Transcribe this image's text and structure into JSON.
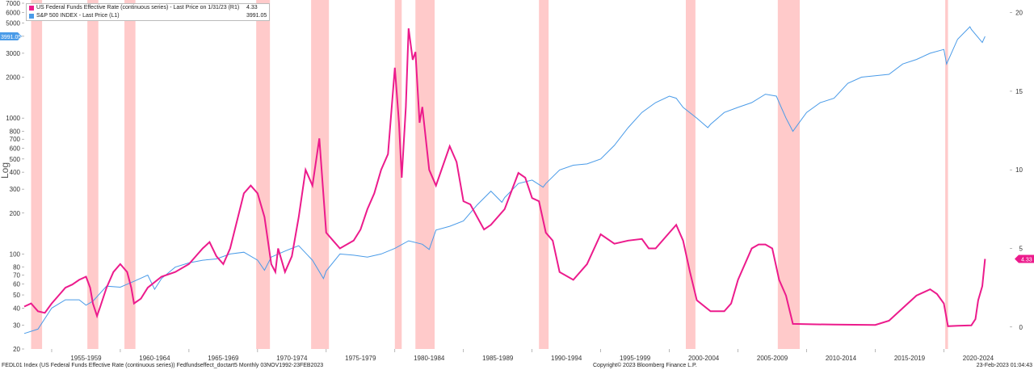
{
  "legend": {
    "fed": {
      "label": "US Federal Funds Effective Rate (continuous series) - Last Price on 1/31/23 (R1)",
      "value": "4.33",
      "color": "#ec1b8c"
    },
    "spx": {
      "label": "S&P 500 INDEX - Last Price (L1)",
      "value": "3991.05",
      "color": "#4a9be8"
    }
  },
  "left_axis_title": "Log",
  "last_labels": {
    "spx": "3991.05",
    "fed": "4.33"
  },
  "footer": {
    "left": "FEDL01 Index (US Federal Funds Effective Rate (continuous series)) Fedfundseffect_doctart5  Monthly 03NOV1992-23FEB2023",
    "center": "Copyright© 2023 Bloomberg Finance L.P.",
    "right": "23-Feb-2023 01:04:43"
  },
  "chart_data": {
    "type": "line",
    "x_range": [
      1953.0,
      2024.8
    ],
    "xticks": [
      "1955-1959",
      "1960-1964",
      "1965-1969",
      "1970-1974",
      "1975-1979",
      "1980-1984",
      "1985-1989",
      "1990-1994",
      "1995-1999",
      "2000-2004",
      "2005-2009",
      "2010-2014",
      "2015-2019",
      "2020-2024"
    ],
    "left_axis": {
      "scale": "log",
      "ticks": [
        7000,
        6000,
        5000,
        4000,
        3000,
        2000,
        1000,
        800,
        700,
        600,
        500,
        400,
        300,
        200,
        100,
        80,
        70,
        60,
        50,
        40,
        30,
        20
      ],
      "range": [
        20,
        7000
      ]
    },
    "right_axis": {
      "scale": "linear",
      "ticks": [
        0,
        5,
        10,
        15,
        20
      ],
      "range": [
        -1.4,
        20.6
      ]
    },
    "recession_bands": [
      [
        1953.5,
        1954.3
      ],
      [
        1957.6,
        1958.4
      ],
      [
        1960.3,
        1961.1
      ],
      [
        1969.9,
        1970.9
      ],
      [
        1973.9,
        1975.2
      ],
      [
        1980.0,
        1980.5
      ],
      [
        1981.5,
        1982.9
      ],
      [
        1990.5,
        1991.2
      ],
      [
        2001.2,
        2001.9
      ],
      [
        2007.9,
        2009.5
      ],
      [
        2020.1,
        2020.3
      ]
    ],
    "series": [
      {
        "name": "US Federal Funds Effective Rate (continuous series)",
        "axis": "right",
        "x": [
          1953.0,
          1953.5,
          1954.0,
          1954.5,
          1955.0,
          1955.5,
          1956.0,
          1956.5,
          1957.0,
          1957.5,
          1957.8,
          1958.0,
          1958.3,
          1958.5,
          1959.0,
          1959.5,
          1960.0,
          1960.5,
          1960.8,
          1961.0,
          1961.5,
          1962.0,
          1963.0,
          1964.0,
          1965.0,
          1966.0,
          1966.5,
          1967.0,
          1967.5,
          1968.0,
          1969.0,
          1969.5,
          1970.0,
          1970.5,
          1971.0,
          1971.3,
          1971.5,
          1972.0,
          1972.5,
          1973.0,
          1973.5,
          1974.0,
          1974.5,
          1975.0,
          1975.5,
          1976.0,
          1977.0,
          1977.5,
          1978.0,
          1978.5,
          1979.0,
          1979.5,
          1980.0,
          1980.3,
          1980.5,
          1980.8,
          1981.0,
          1981.3,
          1981.5,
          1981.8,
          1982.0,
          1982.5,
          1983.0,
          1984.0,
          1984.5,
          1985.0,
          1985.5,
          1986.0,
          1986.5,
          1987.0,
          1988.0,
          1989.0,
          1989.5,
          1990.0,
          1990.5,
          1991.0,
          1991.5,
          1992.0,
          1993.0,
          1994.0,
          1995.0,
          1996.0,
          1997.0,
          1998.0,
          1998.5,
          1999.0,
          2000.0,
          2000.5,
          2001.0,
          2001.5,
          2002.0,
          2003.0,
          2004.0,
          2004.5,
          2005.0,
          2006.0,
          2006.5,
          2007.0,
          2007.5,
          2008.0,
          2008.5,
          2009.0,
          2010.0,
          2012.0,
          2015.0,
          2016.0,
          2017.0,
          2018.0,
          2019.0,
          2019.5,
          2020.0,
          2020.3,
          2021.0,
          2022.0,
          2022.3,
          2022.5,
          2022.8,
          2023.0
        ],
        "values": [
          1.3,
          1.5,
          1.0,
          0.9,
          1.5,
          2.0,
          2.5,
          2.7,
          3.0,
          3.2,
          2.5,
          1.5,
          0.7,
          1.2,
          2.5,
          3.5,
          4.0,
          3.5,
          2.5,
          1.5,
          1.8,
          2.5,
          3.2,
          3.5,
          4.0,
          5.0,
          5.4,
          4.5,
          4.0,
          5.0,
          8.5,
          9.0,
          8.5,
          7.0,
          4.0,
          3.5,
          5.0,
          3.5,
          4.5,
          7.0,
          10.0,
          9.0,
          12.0,
          6.0,
          5.5,
          5.0,
          5.5,
          6.2,
          7.5,
          8.5,
          10.0,
          11.0,
          16.5,
          13.0,
          9.5,
          14.0,
          19.0,
          17.0,
          17.5,
          13.0,
          14.0,
          10.0,
          9.0,
          11.5,
          10.5,
          8.0,
          7.8,
          7.0,
          6.2,
          6.5,
          7.5,
          9.8,
          9.5,
          8.2,
          8.0,
          6.0,
          5.5,
          3.5,
          3.0,
          4.0,
          5.9,
          5.3,
          5.5,
          5.6,
          5.0,
          5.0,
          6.0,
          6.5,
          5.5,
          3.5,
          1.7,
          1.0,
          1.0,
          1.5,
          3.0,
          5.0,
          5.25,
          5.25,
          5.0,
          3.0,
          2.0,
          0.2,
          0.18,
          0.15,
          0.13,
          0.4,
          1.2,
          2.0,
          2.4,
          2.1,
          1.5,
          0.05,
          0.08,
          0.1,
          0.5,
          1.7,
          2.6,
          4.33
        ]
      },
      {
        "name": "S&P 500 INDEX",
        "axis": "left",
        "x": [
          1953.0,
          1954.0,
          1955.0,
          1956.0,
          1957.0,
          1957.5,
          1958.0,
          1959.0,
          1960.0,
          1961.0,
          1962.0,
          1962.5,
          1963.0,
          1964.0,
          1965.0,
          1966.0,
          1967.0,
          1968.0,
          1969.0,
          1970.0,
          1970.5,
          1971.0,
          1972.0,
          1972.5,
          1973.0,
          1974.0,
          1974.8,
          1975.0,
          1976.0,
          1977.0,
          1978.0,
          1979.0,
          1980.0,
          1981.0,
          1982.0,
          1982.5,
          1983.0,
          1984.0,
          1985.0,
          1986.0,
          1987.0,
          1987.8,
          1988.0,
          1989.0,
          1990.0,
          1990.8,
          1991.0,
          1992.0,
          1993.0,
          1994.0,
          1995.0,
          1996.0,
          1997.0,
          1998.0,
          1999.0,
          2000.0,
          2000.5,
          2001.0,
          2002.0,
          2002.8,
          2003.0,
          2004.0,
          2005.0,
          2006.0,
          2007.0,
          2007.8,
          2008.0,
          2008.5,
          2009.0,
          2010.0,
          2011.0,
          2012.0,
          2013.0,
          2014.0,
          2015.0,
          2016.0,
          2017.0,
          2018.0,
          2019.0,
          2020.0,
          2020.2,
          2021.0,
          2021.9,
          2022.0,
          2022.8,
          2023.0
        ],
        "values": [
          26,
          28,
          40,
          46,
          46,
          42,
          45,
          58,
          57,
          63,
          70,
          55,
          66,
          80,
          86,
          90,
          92,
          100,
          103,
          90,
          76,
          95,
          105,
          110,
          115,
          90,
          66,
          75,
          100,
          98,
          95,
          100,
          110,
          125,
          118,
          108,
          150,
          160,
          175,
          230,
          290,
          240,
          260,
          330,
          350,
          310,
          330,
          415,
          450,
          460,
          500,
          630,
          850,
          1100,
          1300,
          1450,
          1400,
          1200,
          1000,
          850,
          900,
          1100,
          1200,
          1300,
          1500,
          1450,
          1300,
          1000,
          800,
          1100,
          1300,
          1400,
          1800,
          2000,
          2050,
          2100,
          2500,
          2700,
          3000,
          3200,
          2500,
          3800,
          4700,
          4500,
          3600,
          3991.05
        ]
      }
    ]
  }
}
